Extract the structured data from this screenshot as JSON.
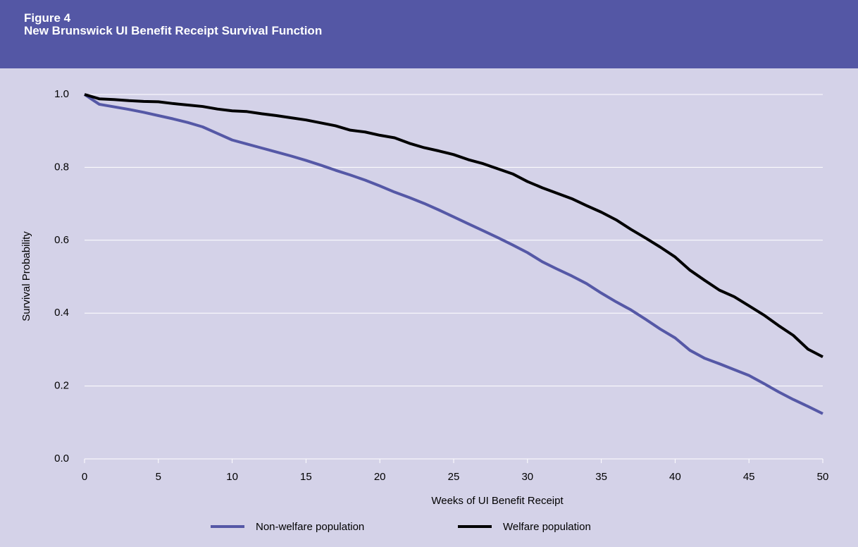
{
  "chart_data": {
    "type": "line",
    "title": "Figure 4",
    "subtitle": "New Brunswick UI Benefit Receipt Survival Function",
    "x_label": "Weeks of UI Benefit Receipt",
    "y_label": "Survival Probability",
    "x": [
      0,
      1,
      2,
      3,
      4,
      5,
      6,
      7,
      8,
      9,
      10,
      11,
      12,
      13,
      14,
      15,
      16,
      17,
      18,
      19,
      20,
      21,
      22,
      23,
      24,
      25,
      26,
      27,
      28,
      29,
      30,
      31,
      32,
      33,
      34,
      35,
      36,
      37,
      38,
      39,
      40,
      41,
      42,
      43,
      44,
      45,
      46,
      47,
      48,
      49,
      50
    ],
    "series": [
      {
        "name": "Non-welfare population",
        "color": "#5558a6",
        "values": [
          1.0,
          0.973,
          0.966,
          0.959,
          0.951,
          0.942,
          0.933,
          0.923,
          0.911,
          0.893,
          0.875,
          0.864,
          0.853,
          0.842,
          0.831,
          0.819,
          0.806,
          0.792,
          0.779,
          0.765,
          0.749,
          0.732,
          0.717,
          0.701,
          0.683,
          0.664,
          0.645,
          0.626,
          0.607,
          0.587,
          0.566,
          0.541,
          0.521,
          0.502,
          0.481,
          0.455,
          0.431,
          0.409,
          0.383,
          0.356,
          0.332,
          0.298,
          0.276,
          0.261,
          0.245,
          0.229,
          0.207,
          0.184,
          0.163,
          0.144,
          0.124
        ]
      },
      {
        "name": "Welfare population",
        "color": "#000000",
        "values": [
          1.0,
          0.988,
          0.986,
          0.983,
          0.981,
          0.98,
          0.975,
          0.971,
          0.967,
          0.96,
          0.955,
          0.953,
          0.947,
          0.942,
          0.936,
          0.93,
          0.922,
          0.914,
          0.902,
          0.897,
          0.888,
          0.881,
          0.866,
          0.854,
          0.845,
          0.835,
          0.821,
          0.81,
          0.796,
          0.782,
          0.761,
          0.744,
          0.729,
          0.714,
          0.695,
          0.677,
          0.656,
          0.63,
          0.606,
          0.581,
          0.554,
          0.518,
          0.49,
          0.463,
          0.445,
          0.42,
          0.395,
          0.366,
          0.339,
          0.301,
          0.28
        ]
      }
    ],
    "xlim": [
      0,
      50
    ],
    "xticks": [
      0,
      5,
      10,
      15,
      20,
      25,
      30,
      35,
      40,
      45,
      50
    ],
    "ylim": [
      0,
      1
    ],
    "yticks": [
      {
        "value": 0,
        "label": "0.0"
      },
      0.2,
      0.4,
      0.6,
      0.8,
      {
        "value": 1,
        "label": "1.0"
      }
    ],
    "grid": true,
    "legend": "bottom"
  }
}
